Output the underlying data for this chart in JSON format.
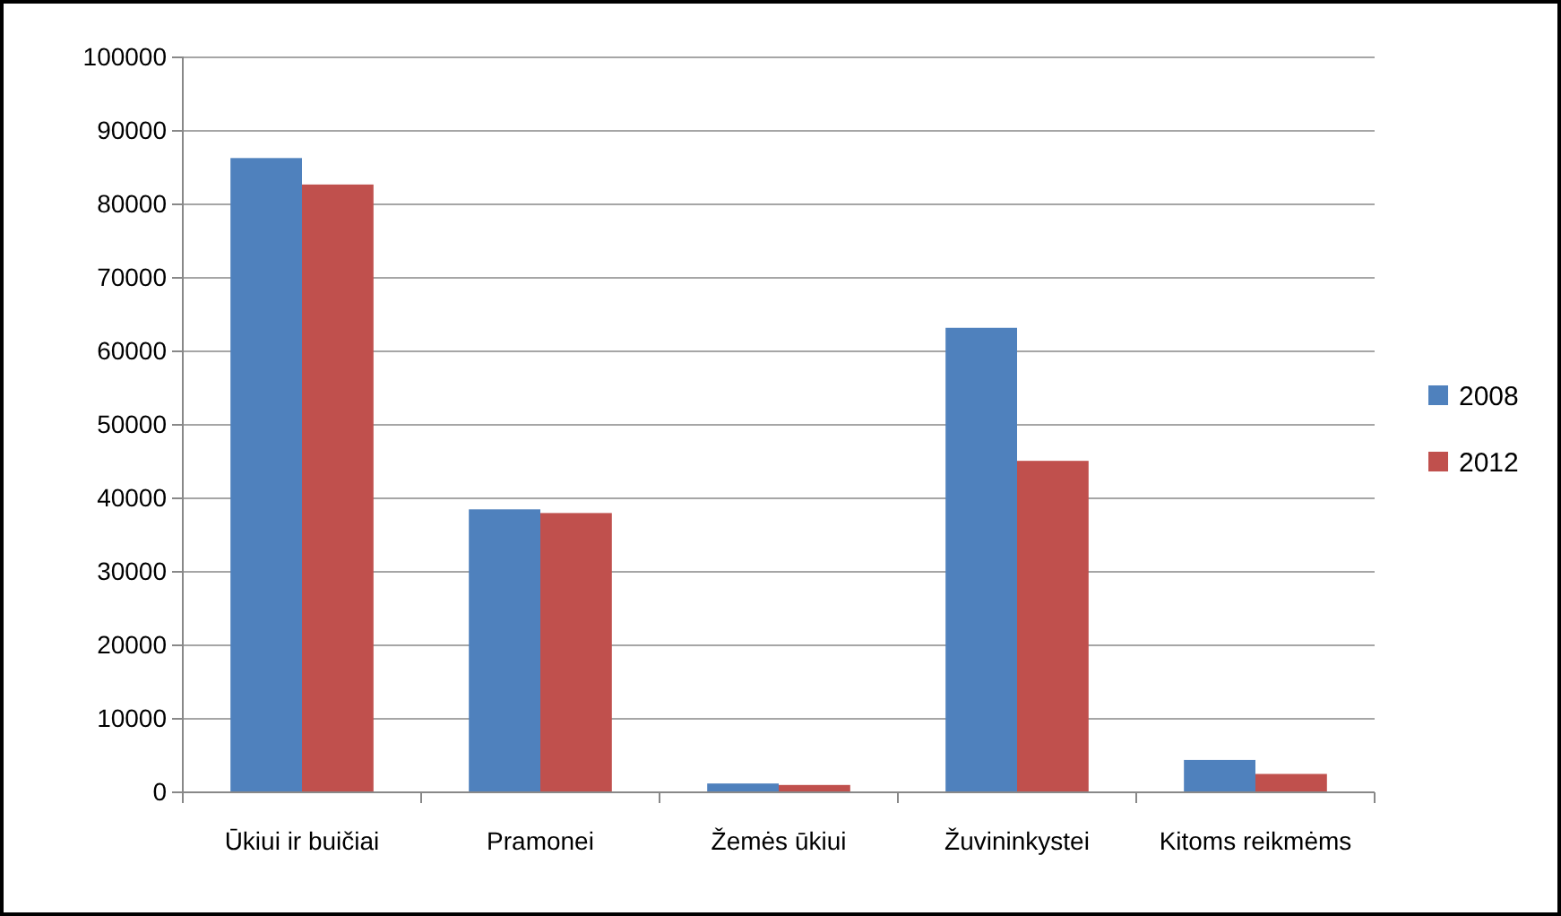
{
  "chart_data": {
    "type": "bar",
    "categories": [
      "Ūkiui ir buičiai",
      "Pramonei",
      "Žemės ūkiui",
      "Žuvininkystei",
      "Kitoms reikmėms"
    ],
    "series": [
      {
        "name": "2008",
        "color": "#4f81bd",
        "values": [
          86300,
          38500,
          1200,
          63200,
          4400
        ]
      },
      {
        "name": "2012",
        "color": "#c0504d",
        "values": [
          82700,
          38000,
          1000,
          45100,
          2500
        ]
      }
    ],
    "ylim": [
      0,
      100000
    ],
    "yticks": [
      0,
      10000,
      20000,
      30000,
      40000,
      50000,
      60000,
      70000,
      80000,
      90000,
      100000
    ],
    "grid": "y",
    "legend": "right"
  }
}
